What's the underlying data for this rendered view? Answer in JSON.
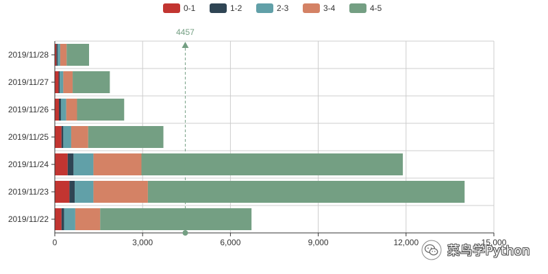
{
  "chart_data": {
    "type": "bar",
    "orientation": "horizontal",
    "stacked": true,
    "categories": [
      "2019/11/22",
      "2019/11/23",
      "2019/11/24",
      "2019/11/25",
      "2019/11/26",
      "2019/11/27",
      "2019/11/28"
    ],
    "series": [
      {
        "name": "0-1",
        "color": "#c23531",
        "values": [
          230,
          500,
          440,
          230,
          140,
          130,
          55
        ]
      },
      {
        "name": "1-2",
        "color": "#2f4554",
        "values": [
          90,
          180,
          200,
          60,
          70,
          40,
          40
        ]
      },
      {
        "name": "2-3",
        "color": "#61a0a8",
        "values": [
          380,
          640,
          680,
          270,
          180,
          120,
          90
        ]
      },
      {
        "name": "3-4",
        "color": "#d48265",
        "values": [
          850,
          1860,
          1640,
          580,
          370,
          320,
          220
        ]
      },
      {
        "name": "4-5",
        "color": "#749f83",
        "values": [
          5170,
          10820,
          8930,
          2570,
          1610,
          1270,
          765
        ]
      }
    ],
    "x_axis": {
      "min": 0,
      "max": 15000,
      "ticks": [
        0,
        3000,
        6000,
        9000,
        12000,
        15000
      ],
      "tick_labels": [
        "0",
        "3,000",
        "6,000",
        "9,000",
        "12,000",
        "15,000"
      ]
    },
    "grid": true,
    "legend_position": "top-center",
    "mark_line": {
      "label": "4457",
      "value": 4457,
      "color": "#749f83"
    },
    "title": "",
    "xlabel": "",
    "ylabel": ""
  },
  "watermark": {
    "text": "菜鸟学Python",
    "icon": "wechat-icon"
  }
}
